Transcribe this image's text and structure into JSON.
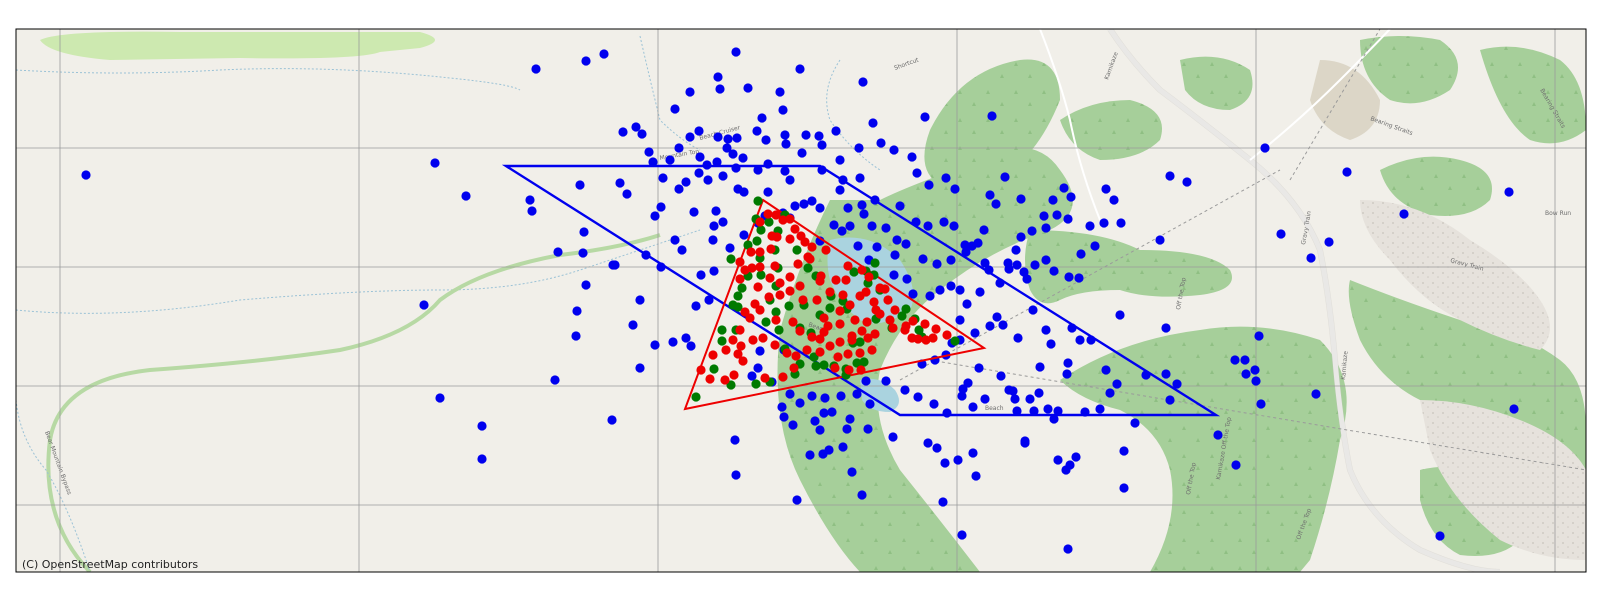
{
  "attribution": "(C) OpenStreetMap contributors",
  "colors": {
    "background": "#f1efe9",
    "forest": "#a6cf9a",
    "forest_dark": "#96c488",
    "scrub": "#c9e3b5",
    "grass": "#cde9b0",
    "water": "#aad3df",
    "gondola": "#9a9a9a",
    "grid": "#9a9a9a",
    "blue_points": "#0000ee",
    "red_points": "#ee0000",
    "green_points": "#007a00",
    "blue_polygon": "#0000ee",
    "red_polygon": "#ee0000"
  },
  "map_labels": [
    "Beach Cruiser",
    "Shortcut",
    "Mountain Top",
    "Kamikaze",
    "Off the Top",
    "Gravy Train",
    "Bearing Straits",
    "Bow Run",
    "Beach",
    "Kamikaze Off the Top",
    "Kamikaze",
    "Off the Top",
    "Off the Top",
    "Gravy Train",
    "Bearing Straits",
    "Bear Mountain Bypass",
    "Beach"
  ],
  "legend": {
    "show": false
  },
  "grid": {
    "show": true
  }
}
